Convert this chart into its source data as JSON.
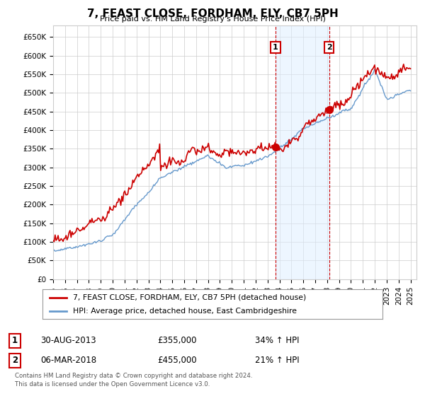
{
  "title": "7, FEAST CLOSE, FORDHAM, ELY, CB7 5PH",
  "subtitle": "Price paid vs. HM Land Registry's House Price Index (HPI)",
  "ylabel_ticks": [
    "£0",
    "£50K",
    "£100K",
    "£150K",
    "£200K",
    "£250K",
    "£300K",
    "£350K",
    "£400K",
    "£450K",
    "£500K",
    "£550K",
    "£600K",
    "£650K"
  ],
  "ytick_values": [
    0,
    50000,
    100000,
    150000,
    200000,
    250000,
    300000,
    350000,
    400000,
    450000,
    500000,
    550000,
    600000,
    650000
  ],
  "ylim": [
    0,
    680000
  ],
  "xlim_start": 1995.0,
  "xlim_end": 2025.5,
  "sale1_year": 2013.66,
  "sale1_price": 355000,
  "sale1_label": "1",
  "sale1_date": "30-AUG-2013",
  "sale1_hpi_pct": "34%",
  "sale2_year": 2018.17,
  "sale2_price": 455000,
  "sale2_label": "2",
  "sale2_date": "06-MAR-2018",
  "sale2_hpi_pct": "21%",
  "legend_line1": "7, FEAST CLOSE, FORDHAM, ELY, CB7 5PH (detached house)",
  "legend_line2": "HPI: Average price, detached house, East Cambridgeshire",
  "footer1": "Contains HM Land Registry data © Crown copyright and database right 2024.",
  "footer2": "This data is licensed under the Open Government Licence v3.0.",
  "line_color_red": "#cc0000",
  "line_color_blue": "#6699cc",
  "fill_color_blue": "#ddeeff",
  "background_color": "#ffffff",
  "grid_color": "#cccccc"
}
